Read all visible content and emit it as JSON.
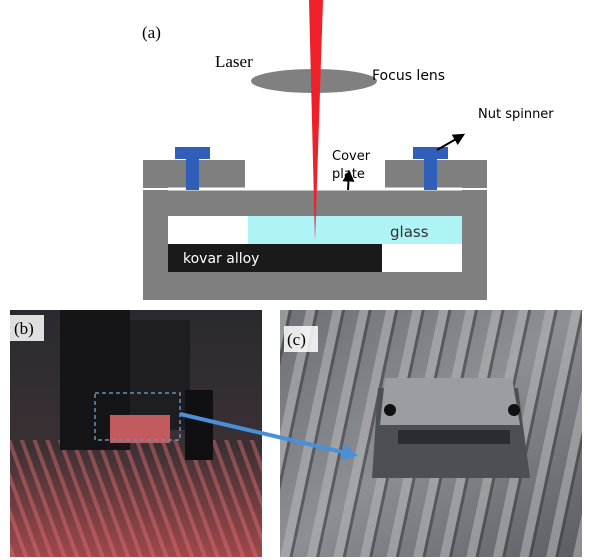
{
  "panels": {
    "a": {
      "label": "(a)",
      "laser": "Laser",
      "focus_lens": "Focus lens",
      "nut_spinner": "Nut spinner",
      "cover_plate": [
        "Cover",
        "plate"
      ],
      "glass": "glass",
      "kovar_alloy": "kovar alloy"
    },
    "b": {
      "label": "(b)"
    },
    "c": {
      "label": "(c)"
    }
  }
}
